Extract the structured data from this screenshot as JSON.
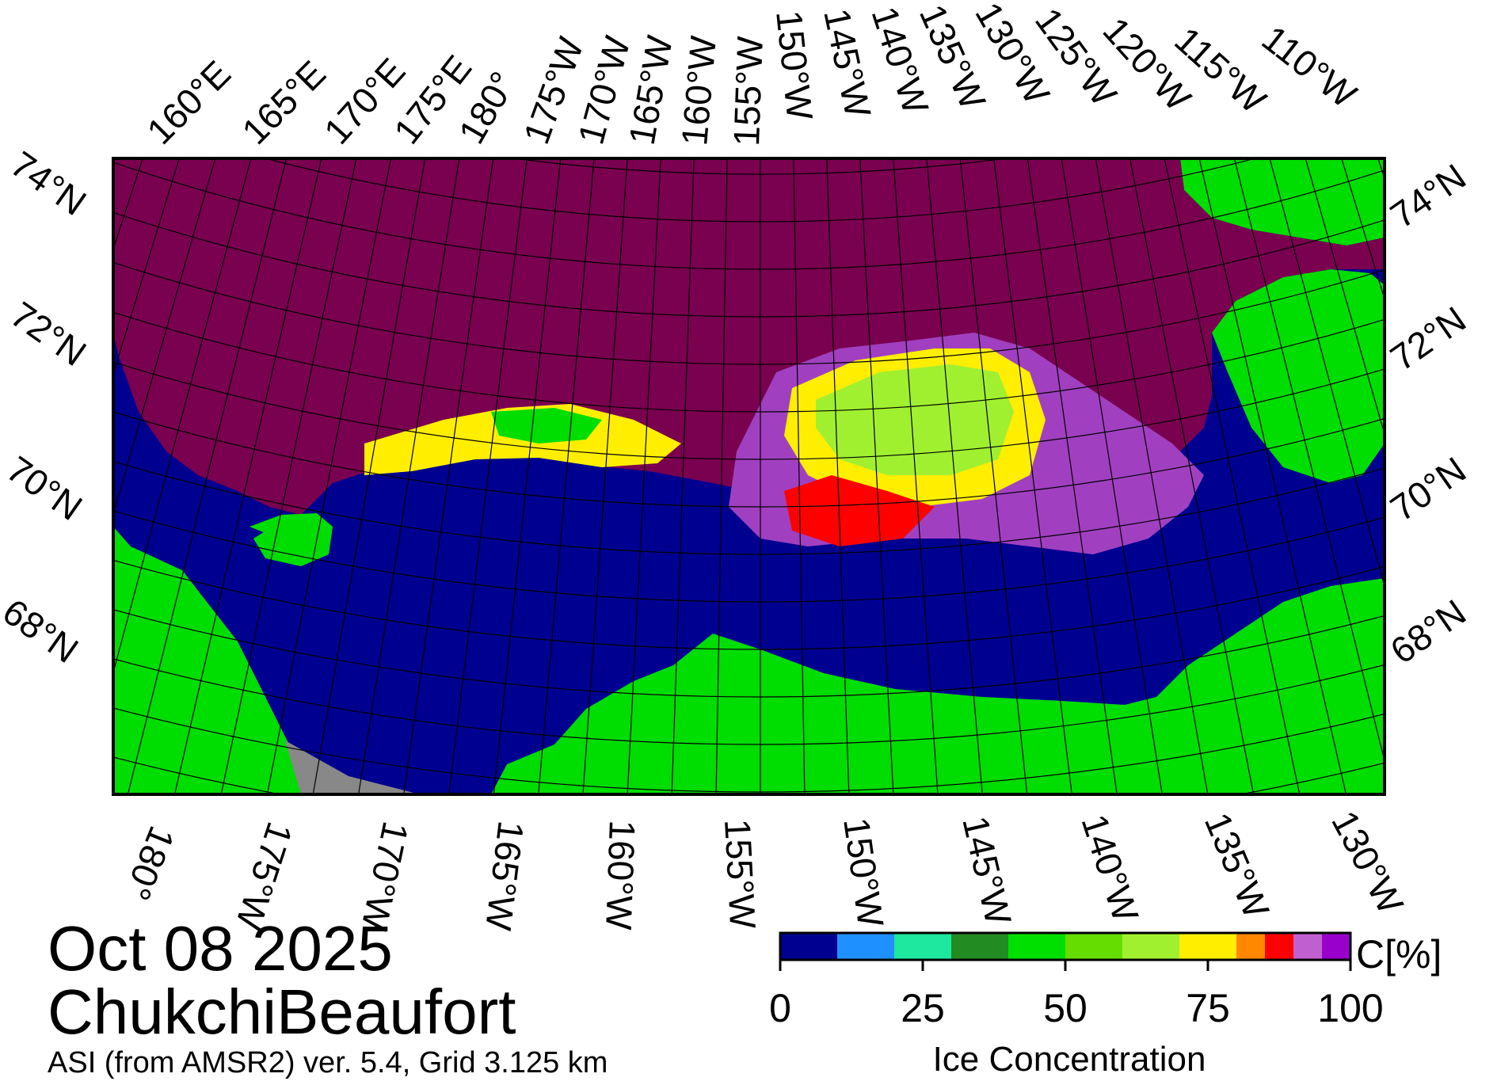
{
  "date": "Oct 08 2025",
  "region": "ChukchiBeaufort",
  "source": "ASI (from AMSR2) ver. 5.4,  Grid 3.125 km",
  "top_lon_labels": [
    "160°E",
    "165°E",
    "170°E",
    "175°E",
    "180°",
    "175°W",
    "170°W",
    "165°W",
    "160°W",
    "155°W",
    "150°W",
    "145°W",
    "140°W",
    "135°W",
    "130°W",
    "125°W",
    "120°W",
    "115°W",
    "110°W"
  ],
  "bottom_lon_labels": [
    "180°",
    "175°W",
    "170°W",
    "165°W",
    "160°W",
    "155°W",
    "150°W",
    "145°W",
    "140°W",
    "135°W",
    "130°W"
  ],
  "left_lat_labels": [
    "74°N",
    "72°N",
    "70°N",
    "68°N"
  ],
  "right_lat_labels": [
    "74°N",
    "72°N",
    "70°N",
    "68°N"
  ],
  "colorbar": {
    "unit": "C[%]",
    "label": "Ice Concentration",
    "ticks": [
      "0",
      "25",
      "50",
      "75",
      "100"
    ],
    "range": [
      0,
      100
    ],
    "bins": [
      {
        "from": 0,
        "to": 10,
        "color": "#000090"
      },
      {
        "from": 10,
        "to": 20,
        "color": "#1e90ff"
      },
      {
        "from": 20,
        "to": 30,
        "color": "#1ee8a0"
      },
      {
        "from": 30,
        "to": 40,
        "color": "#228b22"
      },
      {
        "from": 40,
        "to": 50,
        "color": "#00e000"
      },
      {
        "from": 50,
        "to": 60,
        "color": "#66dd00"
      },
      {
        "from": 60,
        "to": 70,
        "color": "#a0f030"
      },
      {
        "from": 70,
        "to": 80,
        "color": "#ffee00"
      },
      {
        "from": 80,
        "to": 85,
        "color": "#ff8800"
      },
      {
        "from": 85,
        "to": 90,
        "color": "#ff0000"
      },
      {
        "from": 90,
        "to": 95,
        "color": "#c060d0"
      },
      {
        "from": 95,
        "to": 100,
        "color": "#9900cc"
      }
    ]
  },
  "colors": {
    "ocean": "#000090",
    "land": "#00dd00",
    "pack_ice": "#7a0050",
    "no_data": "#888888",
    "grid": "#000000"
  }
}
